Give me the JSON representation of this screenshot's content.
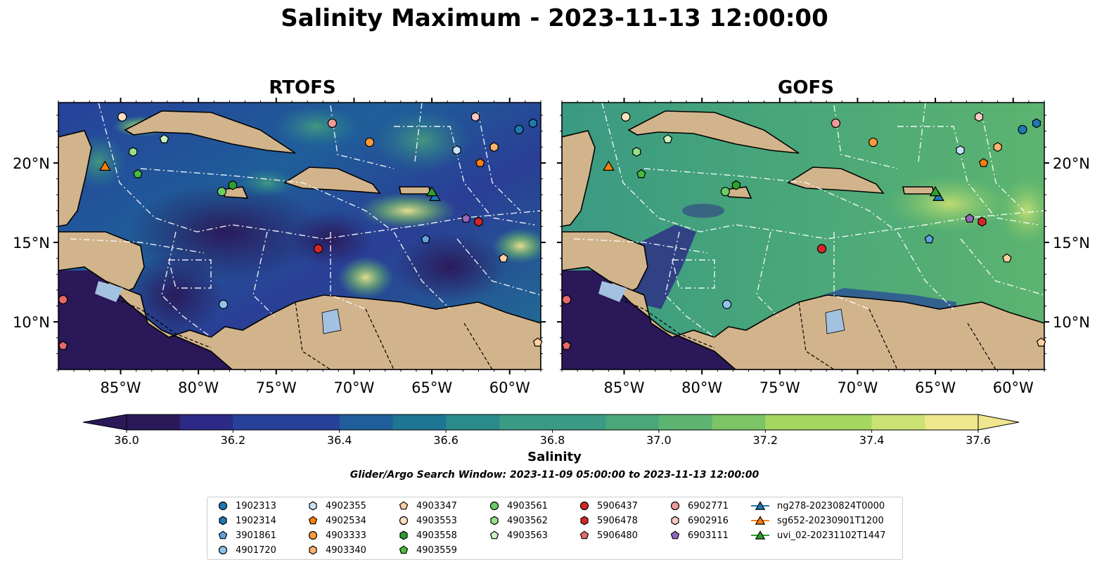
{
  "figure": {
    "title": "Salinity Maximum - 2023-11-13 12:00:00",
    "panels": [
      {
        "title": "RTOFS"
      },
      {
        "title": "GOFS"
      }
    ]
  },
  "axes": {
    "x_ticks": [
      "85°W",
      "80°W",
      "75°W",
      "70°W",
      "65°W",
      "60°W"
    ],
    "y_ticks": [
      "20°N",
      "15°N",
      "10°N"
    ],
    "lon_range": [
      -89,
      -58
    ],
    "lat_range": [
      7,
      23.8
    ]
  },
  "colorbar": {
    "label": "Salinity",
    "ticks": [
      "36.0",
      "36.2",
      "36.4",
      "36.6",
      "36.8",
      "37.0",
      "37.2",
      "37.4",
      "37.6"
    ],
    "range": [
      35.9,
      37.7
    ],
    "colors": [
      "#2a1858",
      "#2c2a86",
      "#27419a",
      "#1f5e9a",
      "#1e7594",
      "#2a8a8c",
      "#3a9a83",
      "#4aa779",
      "#5cb470",
      "#7cc466",
      "#a4d660",
      "#cbe174",
      "#efe68e"
    ],
    "extend": "both"
  },
  "search_window": "Glider/Argo Search Window: 2023-11-09 05:00:00 to 2023-11-13 12:00:00",
  "land_color": "#d2b48c",
  "observations": [
    {
      "id": "1902313",
      "lon": -59.4,
      "lat": 22.1,
      "marker": "circle",
      "color": "#1f77b4"
    },
    {
      "id": "1902314",
      "lon": -58.5,
      "lat": 22.5,
      "marker": "hexagon",
      "color": "#1f77b4"
    },
    {
      "id": "3901861",
      "lon": -65.4,
      "lat": 15.2,
      "marker": "pentagon",
      "color": "#5fa2dd"
    },
    {
      "id": "4901720",
      "lon": -78.4,
      "lat": 11.1,
      "marker": "circle",
      "color": "#8ec3ea"
    },
    {
      "id": "4902355",
      "lon": -63.4,
      "lat": 20.8,
      "marker": "hexagon",
      "color": "#c6e2f7"
    },
    {
      "id": "4902534",
      "lon": -61.9,
      "lat": 20.0,
      "marker": "pentagon",
      "color": "#ff7f0e"
    },
    {
      "id": "4903333",
      "lon": -69.0,
      "lat": 21.3,
      "marker": "circle",
      "color": "#ff9a3c"
    },
    {
      "id": "4903340",
      "lon": -61.0,
      "lat": 21.0,
      "marker": "hexagon",
      "color": "#ffb56b"
    },
    {
      "id": "4903347",
      "lon": -60.4,
      "lat": 14.0,
      "marker": "pentagon",
      "color": "#ffd1a1"
    },
    {
      "id": "4903553",
      "lon": -84.9,
      "lat": 22.9,
      "marker": "circle",
      "color": "#ffe0c0"
    },
    {
      "id": "4903558",
      "lon": -77.8,
      "lat": 18.6,
      "marker": "hexagon",
      "color": "#2ca02c"
    },
    {
      "id": "4903559",
      "lon": -83.9,
      "lat": 19.3,
      "marker": "pentagon",
      "color": "#4cbb3c"
    },
    {
      "id": "4903561",
      "lon": -78.5,
      "lat": 18.2,
      "marker": "circle",
      "color": "#6acd63"
    },
    {
      "id": "4903562",
      "lon": -84.2,
      "lat": 20.7,
      "marker": "hexagon",
      "color": "#98df8a"
    },
    {
      "id": "4903563",
      "lon": -82.2,
      "lat": 21.5,
      "marker": "pentagon",
      "color": "#c9f2c0"
    },
    {
      "id": "5906437",
      "lon": -72.3,
      "lat": 14.6,
      "marker": "circle",
      "color": "#d62728"
    },
    {
      "id": "5906478",
      "lon": -62.0,
      "lat": 16.3,
      "marker": "hexagon",
      "color": "#d62728"
    },
    {
      "id": "5906480",
      "lon": -88.7,
      "lat": 8.5,
      "marker": "pentagon",
      "color": "#e66a6a"
    },
    {
      "id": "6902771",
      "lon": -71.4,
      "lat": 22.5,
      "marker": "circle",
      "color": "#f09a9a"
    },
    {
      "id": "6902916",
      "lon": -62.2,
      "lat": 22.9,
      "marker": "hexagon",
      "color": "#fbc8c8"
    },
    {
      "id": "6903111",
      "lon": -62.8,
      "lat": 16.5,
      "marker": "pentagon",
      "color": "#9467bd"
    }
  ],
  "extra_markers": [
    {
      "lon": -88.7,
      "lat": 11.4,
      "marker": "circle",
      "color": "#e66a6a"
    },
    {
      "lon": -58.2,
      "lat": 8.7,
      "marker": "pentagon",
      "color": "#ffd1a1"
    }
  ],
  "gliders": [
    {
      "id": "ng278-20230824T0000",
      "lon": -64.8,
      "lat": 17.9,
      "color": "#1f77b4"
    },
    {
      "id": "sg652-20230901T1200",
      "lon": -86.0,
      "lat": 19.8,
      "color": "#ff7f0e"
    },
    {
      "id": "uvi_02-20231102T1447",
      "lon": -65.0,
      "lat": 18.2,
      "color": "#2ca02c"
    }
  ],
  "legend": {
    "columns": [
      [
        "1902313",
        "1902314",
        "3901861",
        "4901720"
      ],
      [
        "4902355",
        "4902534",
        "4903333",
        "4903340"
      ],
      [
        "4903347",
        "4903553",
        "4903558",
        "4903559"
      ],
      [
        "4903561",
        "4903562",
        "4903563"
      ],
      [
        "5906437",
        "5906478",
        "5906480"
      ],
      [
        "6902771",
        "6902916",
        "6903111"
      ],
      [
        "ng278-20230824T0000",
        "sg652-20230901T1200",
        "uvi_02-20231102T1447"
      ]
    ]
  }
}
